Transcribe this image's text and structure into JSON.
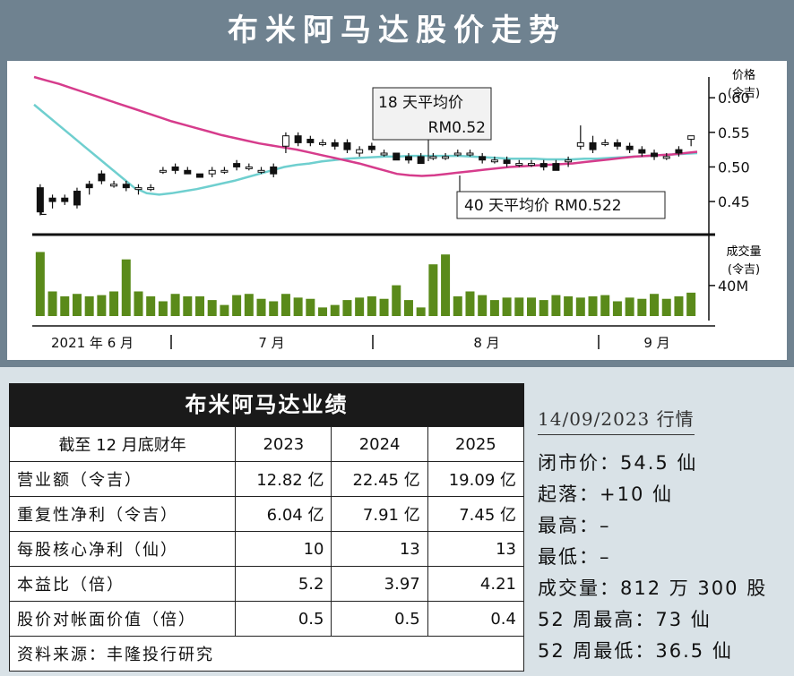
{
  "title": "布米阿马达股价走势",
  "chart_data": {
    "type": "candlestick",
    "price_axis": {
      "label": "价格",
      "unit": "(令吉)",
      "ticks": [
        "0.60",
        "0.55",
        "0.50",
        "0.45"
      ],
      "tick_values": [
        0.6,
        0.55,
        0.5,
        0.45
      ],
      "range": [
        0.41,
        0.63
      ]
    },
    "volume_axis": {
      "label": "成交量",
      "unit": "(令吉)",
      "ticks": [
        "40M"
      ],
      "tick_values": [
        40
      ]
    },
    "x_labels": [
      "2021 年 6 月",
      "7 月",
      "8 月",
      "9 月"
    ],
    "annotations": [
      {
        "label": "18 天平均价",
        "value": "RM0.52"
      },
      {
        "label": "40 天平均价 RM0.522"
      }
    ],
    "series": [
      {
        "name": "18 天平均价",
        "color": "#6fcfcf",
        "values": [
          0.59,
          0.575,
          0.56,
          0.545,
          0.53,
          0.515,
          0.5,
          0.485,
          0.47,
          0.462,
          0.46,
          0.462,
          0.465,
          0.468,
          0.472,
          0.476,
          0.48,
          0.485,
          0.49,
          0.495,
          0.5,
          0.503,
          0.505,
          0.508,
          0.51,
          0.512,
          0.513,
          0.514,
          0.515,
          0.515,
          0.516,
          0.516,
          0.516,
          0.516,
          0.516,
          0.515,
          0.514,
          0.513,
          0.512,
          0.512,
          0.512,
          0.511,
          0.511,
          0.511,
          0.512,
          0.512,
          0.513,
          0.514,
          0.515,
          0.516,
          0.517,
          0.518,
          0.519,
          0.52
        ]
      },
      {
        "name": "40 天平均价",
        "color": "#d63c8c",
        "values": [
          0.63,
          0.625,
          0.62,
          0.614,
          0.608,
          0.602,
          0.596,
          0.59,
          0.584,
          0.578,
          0.572,
          0.566,
          0.561,
          0.556,
          0.551,
          0.546,
          0.542,
          0.538,
          0.534,
          0.531,
          0.528,
          0.525,
          0.521,
          0.517,
          0.513,
          0.509,
          0.505,
          0.5,
          0.495,
          0.49,
          0.488,
          0.487,
          0.488,
          0.49,
          0.492,
          0.494,
          0.496,
          0.498,
          0.5,
          0.501,
          0.502,
          0.503,
          0.504,
          0.505,
          0.507,
          0.509,
          0.511,
          0.513,
          0.515,
          0.516,
          0.517,
          0.518,
          0.52,
          0.522
        ]
      }
    ],
    "candles": [
      {
        "o": 0.47,
        "h": 0.475,
        "l": 0.43,
        "c": 0.435
      },
      {
        "o": 0.455,
        "h": 0.46,
        "l": 0.44,
        "c": 0.45
      },
      {
        "o": 0.455,
        "h": 0.46,
        "l": 0.445,
        "c": 0.45
      },
      {
        "o": 0.465,
        "h": 0.47,
        "l": 0.44,
        "c": 0.445
      },
      {
        "o": 0.475,
        "h": 0.48,
        "l": 0.46,
        "c": 0.47
      },
      {
        "o": 0.49,
        "h": 0.495,
        "l": 0.475,
        "c": 0.48
      },
      {
        "o": 0.475,
        "h": 0.48,
        "l": 0.47,
        "c": 0.475
      },
      {
        "o": 0.475,
        "h": 0.48,
        "l": 0.465,
        "c": 0.47
      },
      {
        "o": 0.47,
        "h": 0.475,
        "l": 0.46,
        "c": 0.47
      },
      {
        "o": 0.47,
        "h": 0.475,
        "l": 0.465,
        "c": 0.47
      },
      {
        "o": 0.495,
        "h": 0.5,
        "l": 0.49,
        "c": 0.495
      },
      {
        "o": 0.5,
        "h": 0.505,
        "l": 0.49,
        "c": 0.495
      },
      {
        "o": 0.495,
        "h": 0.5,
        "l": 0.49,
        "c": 0.49
      },
      {
        "o": 0.49,
        "h": 0.49,
        "l": 0.485,
        "c": 0.485
      },
      {
        "o": 0.49,
        "h": 0.5,
        "l": 0.485,
        "c": 0.495
      },
      {
        "o": 0.495,
        "h": 0.5,
        "l": 0.49,
        "c": 0.495
      },
      {
        "o": 0.505,
        "h": 0.51,
        "l": 0.495,
        "c": 0.5
      },
      {
        "o": 0.5,
        "h": 0.505,
        "l": 0.495,
        "c": 0.5
      },
      {
        "o": 0.495,
        "h": 0.5,
        "l": 0.49,
        "c": 0.495
      },
      {
        "o": 0.5,
        "h": 0.505,
        "l": 0.485,
        "c": 0.49
      },
      {
        "o": 0.53,
        "h": 0.55,
        "l": 0.52,
        "c": 0.545
      },
      {
        "o": 0.545,
        "h": 0.55,
        "l": 0.53,
        "c": 0.535
      },
      {
        "o": 0.54,
        "h": 0.545,
        "l": 0.53,
        "c": 0.535
      },
      {
        "o": 0.535,
        "h": 0.54,
        "l": 0.53,
        "c": 0.535
      },
      {
        "o": 0.535,
        "h": 0.54,
        "l": 0.525,
        "c": 0.53
      },
      {
        "o": 0.535,
        "h": 0.54,
        "l": 0.52,
        "c": 0.525
      },
      {
        "o": 0.52,
        "h": 0.53,
        "l": 0.515,
        "c": 0.525
      },
      {
        "o": 0.53,
        "h": 0.535,
        "l": 0.52,
        "c": 0.525
      },
      {
        "o": 0.52,
        "h": 0.525,
        "l": 0.515,
        "c": 0.52
      },
      {
        "o": 0.52,
        "h": 0.52,
        "l": 0.51,
        "c": 0.51
      },
      {
        "o": 0.515,
        "h": 0.52,
        "l": 0.505,
        "c": 0.51
      },
      {
        "o": 0.515,
        "h": 0.52,
        "l": 0.505,
        "c": 0.505
      },
      {
        "o": 0.515,
        "h": 0.52,
        "l": 0.51,
        "c": 0.515
      },
      {
        "o": 0.515,
        "h": 0.52,
        "l": 0.51,
        "c": 0.515
      },
      {
        "o": 0.52,
        "h": 0.525,
        "l": 0.515,
        "c": 0.52
      },
      {
        "o": 0.52,
        "h": 0.525,
        "l": 0.515,
        "c": 0.52
      },
      {
        "o": 0.515,
        "h": 0.52,
        "l": 0.505,
        "c": 0.51
      },
      {
        "o": 0.51,
        "h": 0.515,
        "l": 0.505,
        "c": 0.51
      },
      {
        "o": 0.51,
        "h": 0.515,
        "l": 0.5,
        "c": 0.505
      },
      {
        "o": 0.505,
        "h": 0.51,
        "l": 0.5,
        "c": 0.505
      },
      {
        "o": 0.505,
        "h": 0.51,
        "l": 0.5,
        "c": 0.505
      },
      {
        "o": 0.505,
        "h": 0.51,
        "l": 0.495,
        "c": 0.5
      },
      {
        "o": 0.505,
        "h": 0.51,
        "l": 0.495,
        "c": 0.495
      },
      {
        "o": 0.51,
        "h": 0.515,
        "l": 0.5,
        "c": 0.51
      },
      {
        "o": 0.53,
        "h": 0.56,
        "l": 0.525,
        "c": 0.535
      },
      {
        "o": 0.535,
        "h": 0.545,
        "l": 0.52,
        "c": 0.525
      },
      {
        "o": 0.535,
        "h": 0.54,
        "l": 0.53,
        "c": 0.535
      },
      {
        "o": 0.535,
        "h": 0.54,
        "l": 0.525,
        "c": 0.53
      },
      {
        "o": 0.53,
        "h": 0.535,
        "l": 0.52,
        "c": 0.525
      },
      {
        "o": 0.525,
        "h": 0.53,
        "l": 0.515,
        "c": 0.52
      },
      {
        "o": 0.52,
        "h": 0.525,
        "l": 0.51,
        "c": 0.515
      },
      {
        "o": 0.515,
        "h": 0.52,
        "l": 0.51,
        "c": 0.515
      },
      {
        "o": 0.525,
        "h": 0.53,
        "l": 0.515,
        "c": 0.52
      },
      {
        "o": 0.54,
        "h": 0.545,
        "l": 0.53,
        "c": 0.545
      }
    ],
    "volumes": [
      52,
      20,
      16,
      18,
      16,
      17,
      20,
      46,
      20,
      16,
      12,
      18,
      16,
      16,
      13,
      9,
      17,
      18,
      14,
      12,
      18,
      15,
      14,
      7,
      9,
      13,
      15,
      16,
      14,
      25,
      13,
      7,
      42,
      50,
      16,
      20,
      17,
      13,
      15,
      15,
      15,
      13,
      17,
      16,
      15,
      16,
      17,
      12,
      15,
      14,
      18,
      14,
      16,
      19
    ],
    "x_label_positions": [
      0,
      12,
      30,
      44
    ]
  },
  "financials": {
    "caption": "布米阿马达业绩",
    "headers": [
      "截至 12 月底财年",
      "2023",
      "2024",
      "2025"
    ],
    "rows": [
      [
        "营业额（令吉）",
        "12.82 亿",
        "22.45 亿",
        "19.09 亿"
      ],
      [
        "重复性净利（令吉）",
        "6.04 亿",
        "7.91 亿",
        "7.45 亿"
      ],
      [
        "每股核心净利（仙）",
        "10",
        "13",
        "13"
      ],
      [
        "本益比（倍）",
        "5.2",
        "3.97",
        "4.21"
      ],
      [
        "股价对帐面价值（倍）",
        "0.5",
        "0.5",
        "0.4"
      ]
    ],
    "source": "资料来源：丰隆投行研究"
  },
  "market": {
    "date": "14/09/2023 行情",
    "rows": [
      "闭市价：54.5 仙",
      "起落：+10 仙",
      "最高：–",
      "最低：–",
      "成交量：812 万 300 股",
      "52 周最高：73 仙",
      "52 周最低：36.5 仙"
    ]
  },
  "colors": {
    "frame": "#6f8290",
    "candle": "#111111",
    "volume": "#5a8a1a",
    "ma18": "#6fcfcf",
    "ma40": "#d63c8c",
    "bottom_bg": "#d9e2e7"
  }
}
